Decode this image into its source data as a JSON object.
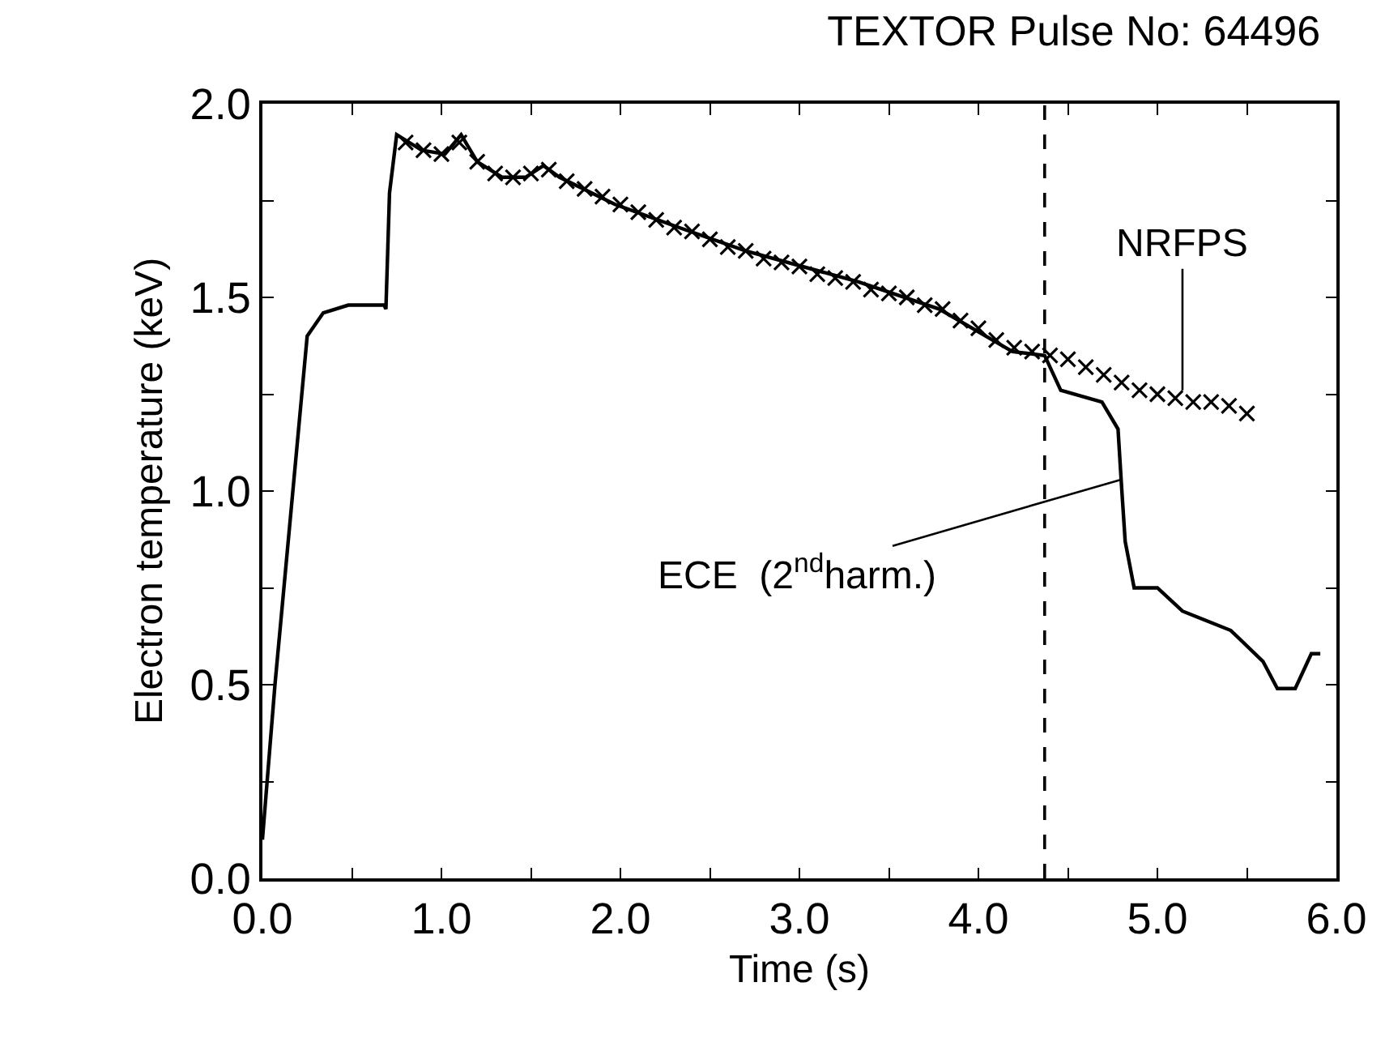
{
  "chart_data": {
    "type": "line",
    "title": "TEXTOR Pulse No: 64496",
    "xlabel": "Time (s)",
    "ylabel": "Electron temperature (keV)",
    "xlim": [
      0,
      6
    ],
    "ylim": [
      0,
      2
    ],
    "xticks": [
      {
        "value": 0,
        "label": "0.0"
      },
      {
        "value": 0.5,
        "label": null
      },
      {
        "value": 1,
        "label": "1.0"
      },
      {
        "value": 1.5,
        "label": null
      },
      {
        "value": 2,
        "label": "2.0"
      },
      {
        "value": 2.5,
        "label": null
      },
      {
        "value": 3,
        "label": "3.0"
      },
      {
        "value": 3.5,
        "label": null
      },
      {
        "value": 4,
        "label": "4.0"
      },
      {
        "value": 4.5,
        "label": null
      },
      {
        "value": 5,
        "label": "5.0"
      },
      {
        "value": 5.5,
        "label": null
      },
      {
        "value": 6,
        "label": "6.0"
      }
    ],
    "yticks": [
      {
        "value": 0,
        "label": "0.0"
      },
      {
        "value": 0.25,
        "label": null
      },
      {
        "value": 0.5,
        "label": "0.5"
      },
      {
        "value": 0.75,
        "label": null
      },
      {
        "value": 1,
        "label": "1.0"
      },
      {
        "value": 1.25,
        "label": null
      },
      {
        "value": 1.5,
        "label": "1.5"
      },
      {
        "value": 1.75,
        "label": null
      },
      {
        "value": 2,
        "label": "2.0"
      }
    ],
    "series": [
      {
        "color": "#000000",
        "marker": "none",
        "line_style": "solid",
        "x": [
          0.0,
          0.07,
          0.25,
          0.34,
          0.48,
          0.68,
          0.69,
          0.71,
          0.75,
          0.89,
          1.02,
          1.11,
          1.2,
          1.34,
          1.47,
          1.57,
          1.66,
          1.97,
          2.33,
          2.7,
          3.33,
          3.78,
          4.19,
          4.37,
          4.46,
          4.69,
          4.78,
          4.8,
          4.82,
          4.87,
          5.0,
          5.14,
          5.41,
          5.59,
          5.67,
          5.77,
          5.86,
          5.91
        ],
        "values": [
          0.1,
          0.5,
          1.4,
          1.46,
          1.48,
          1.48,
          1.47,
          1.77,
          1.92,
          1.88,
          1.87,
          1.92,
          1.85,
          1.81,
          1.81,
          1.84,
          1.81,
          1.74,
          1.68,
          1.62,
          1.54,
          1.47,
          1.36,
          1.35,
          1.26,
          1.23,
          1.16,
          1.01,
          0.87,
          0.75,
          0.75,
          0.69,
          0.64,
          0.56,
          0.49,
          0.49,
          0.58,
          0.58
        ]
      },
      {
        "type": "scatter",
        "color": "#000000",
        "marker": "cross",
        "x": [
          0.8,
          0.9,
          1.0,
          1.1,
          1.2,
          1.3,
          1.4,
          1.5,
          1.6,
          1.7,
          1.8,
          1.9,
          2.0,
          2.1,
          2.2,
          2.3,
          2.4,
          2.5,
          2.6,
          2.7,
          2.8,
          2.9,
          3.0,
          3.1,
          3.2,
          3.3,
          3.4,
          3.5,
          3.6,
          3.7,
          3.8,
          3.9,
          4.0,
          4.1,
          4.2,
          4.3,
          4.4,
          4.5,
          4.6,
          4.7,
          4.8,
          4.9,
          5.0,
          5.1,
          5.2,
          5.3,
          5.4,
          5.5
        ],
        "values": [
          1.9,
          1.88,
          1.87,
          1.9,
          1.85,
          1.82,
          1.81,
          1.82,
          1.83,
          1.8,
          1.78,
          1.76,
          1.74,
          1.72,
          1.7,
          1.68,
          1.67,
          1.65,
          1.63,
          1.62,
          1.6,
          1.59,
          1.58,
          1.56,
          1.55,
          1.54,
          1.52,
          1.51,
          1.5,
          1.48,
          1.47,
          1.44,
          1.42,
          1.39,
          1.37,
          1.36,
          1.35,
          1.34,
          1.32,
          1.3,
          1.28,
          1.26,
          1.25,
          1.24,
          1.23,
          1.23,
          1.22,
          1.2
        ]
      }
    ],
    "ref_lines": [
      {
        "axis": "x",
        "value": 4.37,
        "line_style": "dashed",
        "color": "#000000"
      }
    ],
    "annotations": [
      {
        "text": "NRFPS",
        "x": 5.14,
        "y": 1.26
      },
      {
        "text": "ECE  (2$^{nd}$harm.)",
        "x": 4.8,
        "y": 1.03
      }
    ]
  }
}
